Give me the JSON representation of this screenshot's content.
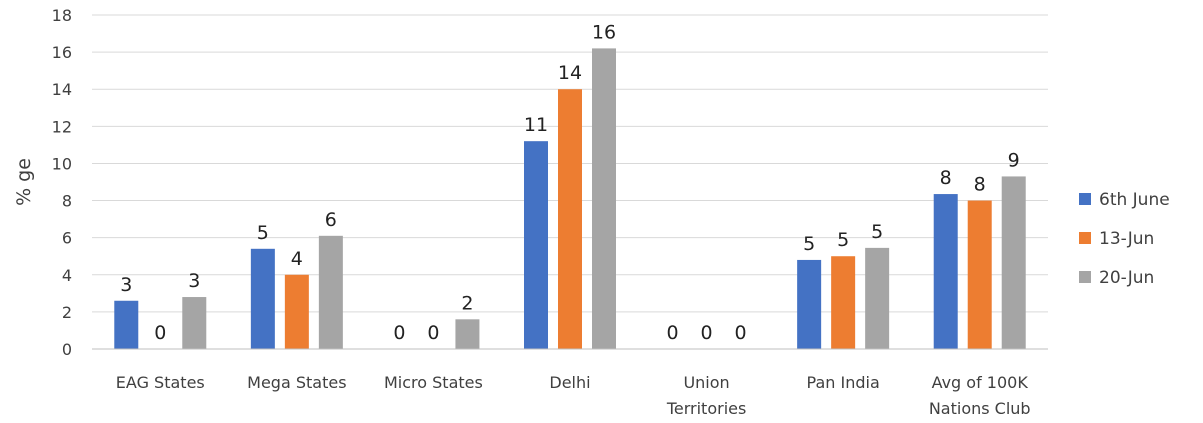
{
  "chart_data": {
    "type": "bar",
    "title": "",
    "xlabel": "",
    "ylabel": "% ge",
    "ylim": [
      0,
      18
    ],
    "yticks": [
      0,
      2,
      4,
      6,
      8,
      10,
      12,
      14,
      16,
      18
    ],
    "grid": true,
    "legend_position": "right",
    "categories": [
      [
        "EAG States"
      ],
      [
        "Mega States"
      ],
      [
        "Micro States"
      ],
      [
        "Delhi"
      ],
      [
        "Union",
        "Territories"
      ],
      [
        "Pan India"
      ],
      [
        "Avg of 100K",
        "Nations Club"
      ]
    ],
    "series": [
      {
        "name": "6th June",
        "color": "#4472C4",
        "values": [
          2.6,
          5.4,
          0,
          11.2,
          0,
          4.8,
          8.35
        ],
        "labels": [
          "3",
          "5",
          "0",
          "11",
          "0",
          "5",
          "8"
        ]
      },
      {
        "name": "13-Jun",
        "color": "#ED7D31",
        "values": [
          0,
          4.0,
          0,
          14.0,
          0,
          5.0,
          8.0
        ],
        "labels": [
          "0",
          "4",
          "0",
          "14",
          "0",
          "5",
          "8"
        ]
      },
      {
        "name": "20-Jun",
        "color": "#A5A5A5",
        "values": [
          2.8,
          6.1,
          1.6,
          16.2,
          0,
          5.45,
          9.3
        ],
        "labels": [
          "3",
          "6",
          "2",
          "16",
          "0",
          "5",
          "9"
        ]
      }
    ]
  }
}
